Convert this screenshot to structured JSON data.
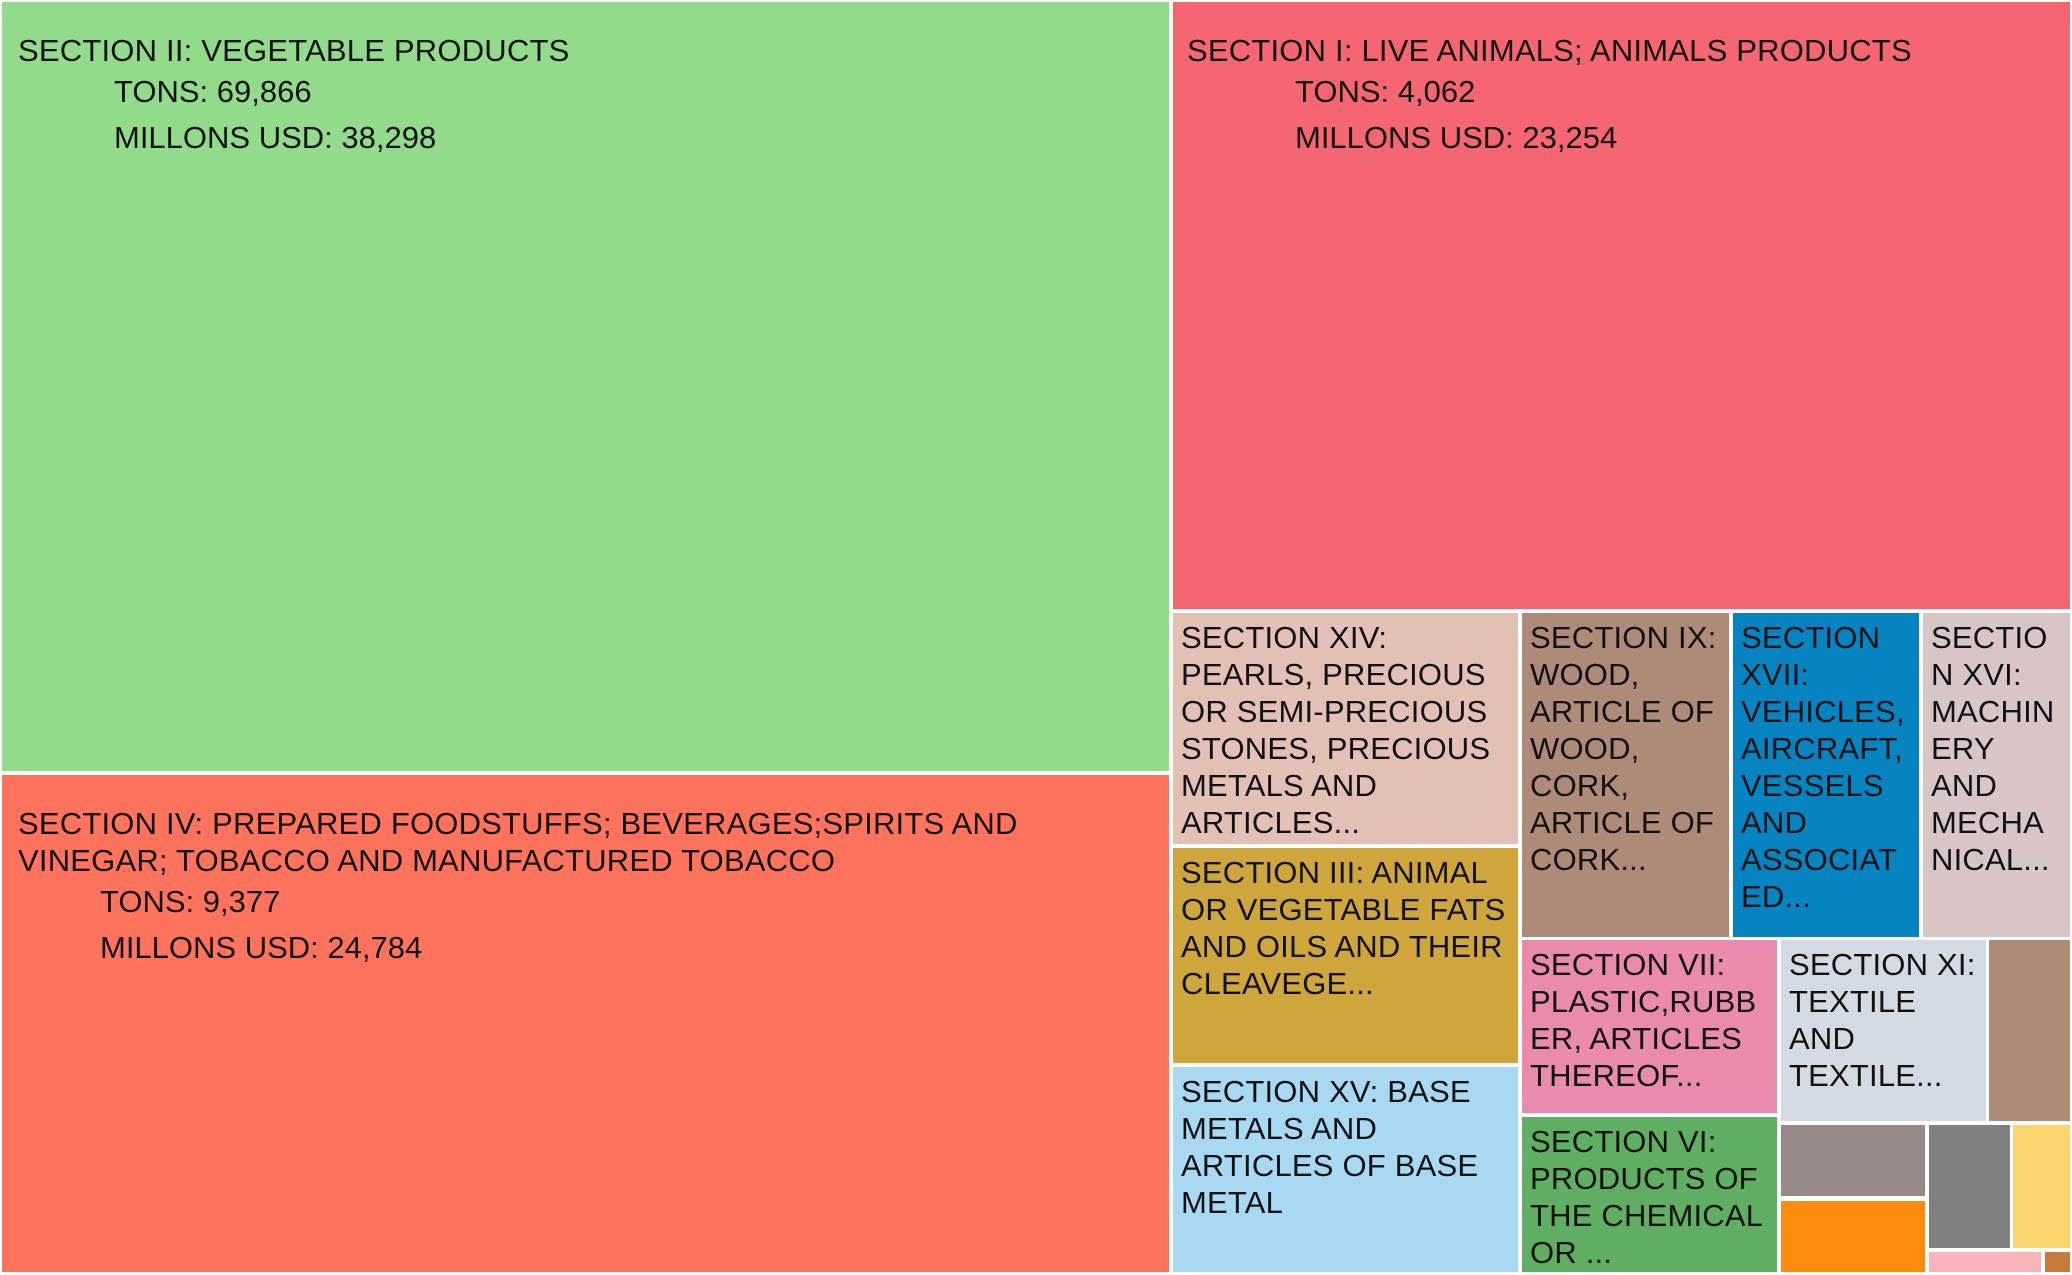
{
  "chart_data": {
    "type": "treemap",
    "title": "",
    "tiles": [
      {
        "id": "sec2",
        "label": "SECTION II: VEGETABLE PRODUCTS",
        "tons": "TONS: 69,866",
        "usd": "MILLONS USD: 38,298",
        "value": 38298,
        "color": "#92db8b"
      },
      {
        "id": "sec1",
        "label": "SECTION I: LIVE ANIMALS; ANIMALS PRODUCTS",
        "tons": "TONS: 4,062",
        "usd": "MILLONS USD: 23,254",
        "value": 23254,
        "color": "#f66672"
      },
      {
        "id": "sec4",
        "label": "SECTION IV: PREPARED FOODSTUFFS; BEVERAGES;SPIRITS AND VINEGAR; TOBACCO AND MANUFACTURED TOBACCO",
        "tons": "TONS: 9,377",
        "usd": "MILLONS USD: 24,784",
        "value": 24784,
        "color": "#ff735c"
      },
      {
        "id": "sec14",
        "label": "SECTION XIV: PEARLS, PRECIOUS OR SEMI-PRECIOUS STONES, PRECIOUS METALS AND ARTICLES...",
        "color": "#e3c0b6"
      },
      {
        "id": "sec9",
        "label": "SECTION IX: WOOD, ARTICLE OF WOOD, CORK, ARTICLE OF CORK...",
        "color": "#ae8a79"
      },
      {
        "id": "sec17",
        "label": "SECTION XVII: VEHICLES, AIRCRAFT, VESSELS AND ASSOCIATED...",
        "color": "#0584c1"
      },
      {
        "id": "sec16",
        "label": "SECTION XVI: MACHINERY AND MECHANICAL...",
        "color": "#d8c5c5"
      },
      {
        "id": "sec3",
        "label": "SECTION III: ANIMAL OR VEGETABLE FATS AND OILS AND THEIR CLEAVEGE...",
        "color": "#cfa63c"
      },
      {
        "id": "sec15",
        "label": "SECTION XV: BASE METALS AND ARTICLES OF BASE METAL",
        "color": "#a9d8f2"
      },
      {
        "id": "sec7",
        "label": "SECTION VII: PLASTIC,RUBBER, ARTICLES THEREOF...",
        "color": "#ea8aaf"
      },
      {
        "id": "sec11",
        "label": "SECTION XI: TEXTILE AND TEXTILE...",
        "color": "#d3dae3"
      },
      {
        "id": "sec6",
        "label": "SECTION VI: PRODUCTS OF THE CHEMICAL OR ...",
        "color": "#5fae61"
      },
      {
        "id": "u1",
        "label": "",
        "color": "#ae8a79"
      },
      {
        "id": "u2",
        "label": "",
        "color": "#958a88"
      },
      {
        "id": "u3",
        "label": "",
        "color": "#808080"
      },
      {
        "id": "u4",
        "label": "",
        "color": "#fbd56d"
      },
      {
        "id": "u5",
        "label": "",
        "color": "#ff8b0f"
      },
      {
        "id": "u6",
        "label": "",
        "color": "#f9b4b9"
      },
      {
        "id": "u7",
        "label": "",
        "color": "#c87a3a"
      }
    ]
  }
}
